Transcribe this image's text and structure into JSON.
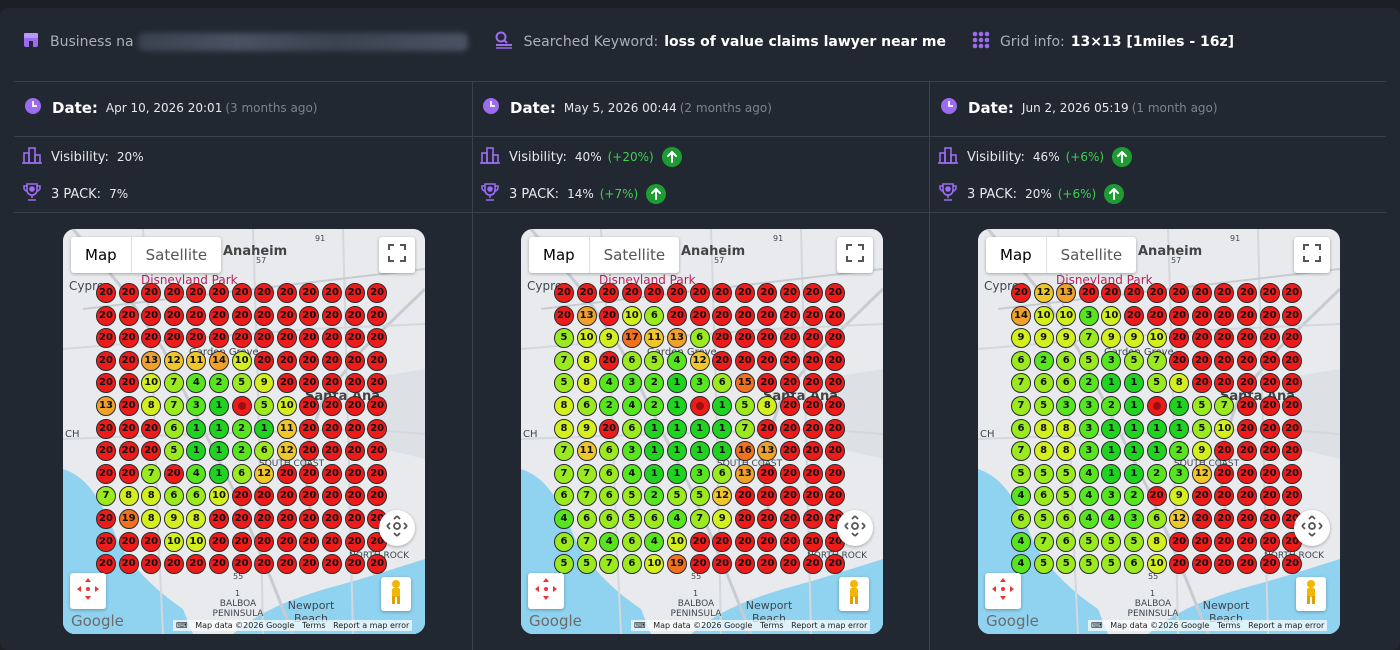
{
  "header": {
    "business_label": "Business na",
    "keyword_label": "Searched Keyword:",
    "keyword_value": "loss of value claims lawyer near me",
    "grid_label": "Grid info:",
    "grid_value": "13×13 [1miles - 16z]"
  },
  "colors": {
    "accent": "#9b6cf0",
    "up_badge": "#1e9c33",
    "delta_text": "#3ed04f",
    "rank_top": "#21d321",
    "rank_bad": "#ee1b1b"
  },
  "map_common": {
    "map_label": "Map",
    "satellite_label": "Satellite",
    "google_label": "Google",
    "map_data_label": "Map data ©2026 Google",
    "terms_label": "Terms",
    "report_label": "Report a map error",
    "places": {
      "anaheim": "Anaheim",
      "disneyland": "Disneyland Park",
      "cypress": "Cypres",
      "garden_grove": "Garden Grove",
      "santa_ana": "Santa Ana",
      "south_coast": "SOUTH COAST",
      "north_rock": "NORTH ROCK",
      "balboa": "BALBOA PENINSULA",
      "newport": "Newport Beach",
      "ch": "CH",
      "r91": "91",
      "r57": "57",
      "r55": "55",
      "r1": "1"
    }
  },
  "columns": [
    {
      "date_label": "Date:",
      "date_value": "Apr 10, 2026 20:01",
      "date_ago": "(3 months ago)",
      "visibility_label": "Visibility:",
      "visibility_value": "20%",
      "visibility_delta": "",
      "visibility_up": false,
      "pack_label": "3 PACK:",
      "pack_value": "7%",
      "pack_delta": "",
      "pack_up": false,
      "grid": [
        [
          20,
          20,
          20,
          20,
          20,
          20,
          20,
          20,
          20,
          20,
          20,
          20,
          20
        ],
        [
          20,
          20,
          20,
          20,
          20,
          20,
          20,
          20,
          20,
          20,
          20,
          20,
          20
        ],
        [
          20,
          20,
          20,
          20,
          20,
          20,
          20,
          20,
          20,
          20,
          20,
          20,
          20
        ],
        [
          20,
          20,
          13,
          12,
          11,
          14,
          10,
          20,
          20,
          20,
          20,
          20,
          20
        ],
        [
          20,
          20,
          10,
          7,
          4,
          2,
          5,
          9,
          20,
          20,
          20,
          20,
          20
        ],
        [
          13,
          20,
          8,
          7,
          3,
          1,
          0,
          5,
          10,
          20,
          20,
          20,
          20
        ],
        [
          20,
          20,
          20,
          6,
          1,
          1,
          2,
          1,
          11,
          20,
          20,
          20,
          20
        ],
        [
          20,
          20,
          20,
          5,
          1,
          1,
          2,
          6,
          12,
          20,
          20,
          20,
          20
        ],
        [
          20,
          20,
          7,
          20,
          4,
          1,
          6,
          12,
          20,
          20,
          20,
          20,
          20
        ],
        [
          7,
          8,
          8,
          6,
          6,
          10,
          20,
          20,
          20,
          20,
          20,
          20,
          20
        ],
        [
          20,
          19,
          8,
          9,
          8,
          20,
          20,
          20,
          20,
          20,
          20,
          20,
          20
        ],
        [
          20,
          20,
          20,
          10,
          10,
          20,
          20,
          20,
          20,
          20,
          20,
          20,
          20
        ],
        [
          20,
          20,
          20,
          20,
          20,
          20,
          20,
          20,
          20,
          20,
          20,
          20,
          20
        ]
      ]
    },
    {
      "date_label": "Date:",
      "date_value": "May 5, 2026 00:44",
      "date_ago": "(2 months ago)",
      "visibility_label": "Visibility:",
      "visibility_value": "40%",
      "visibility_delta": "(+20%)",
      "visibility_up": true,
      "pack_label": "3 PACK:",
      "pack_value": "14%",
      "pack_delta": "(+7%)",
      "pack_up": true,
      "grid": [
        [
          20,
          20,
          20,
          20,
          20,
          20,
          20,
          20,
          20,
          20,
          20,
          20,
          20
        ],
        [
          20,
          13,
          20,
          10,
          6,
          20,
          20,
          20,
          20,
          20,
          20,
          20,
          20
        ],
        [
          5,
          10,
          9,
          17,
          11,
          13,
          6,
          20,
          20,
          20,
          20,
          20,
          20
        ],
        [
          7,
          8,
          20,
          6,
          5,
          4,
          12,
          20,
          20,
          20,
          20,
          20,
          20
        ],
        [
          5,
          8,
          4,
          3,
          2,
          1,
          3,
          6,
          15,
          20,
          20,
          20,
          20
        ],
        [
          8,
          6,
          2,
          4,
          2,
          1,
          0,
          1,
          5,
          8,
          20,
          20,
          20
        ],
        [
          8,
          9,
          20,
          6,
          1,
          1,
          1,
          1,
          7,
          20,
          20,
          20,
          20
        ],
        [
          7,
          11,
          6,
          3,
          1,
          1,
          1,
          1,
          16,
          13,
          20,
          20,
          20
        ],
        [
          7,
          7,
          6,
          4,
          1,
          1,
          3,
          6,
          13,
          20,
          20,
          20,
          20
        ],
        [
          6,
          7,
          6,
          5,
          2,
          5,
          5,
          12,
          20,
          20,
          20,
          20,
          20
        ],
        [
          4,
          6,
          6,
          5,
          6,
          4,
          7,
          9,
          20,
          20,
          20,
          20,
          20
        ],
        [
          6,
          7,
          4,
          6,
          4,
          10,
          20,
          20,
          20,
          20,
          20,
          20,
          20
        ],
        [
          5,
          5,
          7,
          6,
          10,
          19,
          20,
          20,
          20,
          20,
          20,
          20,
          20
        ]
      ]
    },
    {
      "date_label": "Date:",
      "date_value": "Jun 2, 2026 05:19",
      "date_ago": "(1 month ago)",
      "visibility_label": "Visibility:",
      "visibility_value": "46%",
      "visibility_delta": "(+6%)",
      "visibility_up": true,
      "pack_label": "3 PACK:",
      "pack_value": "20%",
      "pack_delta": "(+6%)",
      "pack_up": true,
      "grid": [
        [
          20,
          12,
          13,
          20,
          20,
          20,
          20,
          20,
          20,
          20,
          20,
          20,
          20
        ],
        [
          14,
          10,
          10,
          3,
          10,
          20,
          20,
          20,
          20,
          20,
          20,
          20,
          20
        ],
        [
          9,
          9,
          9,
          7,
          9,
          9,
          10,
          20,
          20,
          20,
          20,
          20,
          20
        ],
        [
          6,
          2,
          6,
          5,
          3,
          5,
          7,
          20,
          20,
          20,
          20,
          20,
          20
        ],
        [
          7,
          6,
          6,
          2,
          1,
          1,
          5,
          8,
          20,
          20,
          20,
          20,
          20
        ],
        [
          7,
          5,
          3,
          3,
          2,
          1,
          0,
          1,
          5,
          7,
          20,
          20,
          20
        ],
        [
          6,
          8,
          8,
          3,
          1,
          1,
          1,
          1,
          5,
          10,
          20,
          20,
          20
        ],
        [
          7,
          8,
          8,
          3,
          1,
          1,
          1,
          2,
          9,
          20,
          20,
          20,
          20
        ],
        [
          5,
          5,
          5,
          4,
          1,
          1,
          2,
          3,
          12,
          20,
          20,
          20,
          20
        ],
        [
          4,
          6,
          5,
          4,
          3,
          2,
          20,
          9,
          20,
          20,
          20,
          20,
          20
        ],
        [
          6,
          5,
          6,
          4,
          4,
          3,
          6,
          12,
          20,
          20,
          20,
          20,
          20
        ],
        [
          4,
          7,
          6,
          5,
          5,
          5,
          8,
          20,
          20,
          20,
          20,
          20,
          20
        ],
        [
          4,
          5,
          5,
          5,
          5,
          6,
          10,
          20,
          20,
          20,
          20,
          20,
          20
        ]
      ]
    }
  ]
}
